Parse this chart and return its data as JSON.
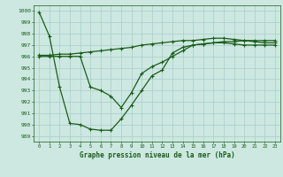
{
  "title": "Graphe pression niveau de la mer (hPa)",
  "bg_color": "#cce8e0",
  "grid_color": "#aacccc",
  "line_color": "#1a5c1a",
  "xlim": [
    -0.5,
    23.5
  ],
  "ylim": [
    988.5,
    1000.5
  ],
  "yticks": [
    989,
    990,
    991,
    992,
    993,
    994,
    995,
    996,
    997,
    998,
    999,
    1000
  ],
  "xticks": [
    0,
    1,
    2,
    3,
    4,
    5,
    6,
    7,
    8,
    9,
    10,
    11,
    12,
    13,
    14,
    15,
    16,
    17,
    18,
    19,
    20,
    21,
    22,
    23
  ],
  "line1_x": [
    0,
    1,
    2,
    3,
    4,
    5,
    6,
    7,
    8,
    9,
    10,
    11,
    12,
    13,
    14,
    15,
    16,
    17,
    18,
    19,
    20,
    21,
    22,
    23
  ],
  "line1_y": [
    999.9,
    997.8,
    993.3,
    990.1,
    990.0,
    989.6,
    989.5,
    989.5,
    990.5,
    991.7,
    993.0,
    994.3,
    994.8,
    996.3,
    996.8,
    997.0,
    997.1,
    997.2,
    997.2,
    997.1,
    997.0,
    997.0,
    997.0,
    997.0
  ],
  "line2_x": [
    0,
    1,
    2,
    3,
    4,
    5,
    6,
    7,
    8,
    9,
    10,
    11,
    12,
    13,
    14,
    15,
    16,
    17,
    18,
    19,
    20,
    21,
    22,
    23
  ],
  "line2_y": [
    996.1,
    996.1,
    996.2,
    996.2,
    996.3,
    996.4,
    996.5,
    996.6,
    996.7,
    996.8,
    997.0,
    997.1,
    997.2,
    997.3,
    997.4,
    997.4,
    997.5,
    997.6,
    997.6,
    997.5,
    997.4,
    997.3,
    997.2,
    997.2
  ],
  "line3_x": [
    0,
    1,
    2,
    3,
    4,
    5,
    6,
    7,
    8,
    9,
    10,
    11,
    12,
    13,
    14,
    15,
    16,
    17,
    18,
    19,
    20,
    21,
    22,
    23
  ],
  "line3_y": [
    996.0,
    996.0,
    996.0,
    996.0,
    996.0,
    993.3,
    993.0,
    992.5,
    991.5,
    992.8,
    994.5,
    995.1,
    995.5,
    996.0,
    996.5,
    997.0,
    997.1,
    997.2,
    997.3,
    997.3,
    997.4,
    997.4,
    997.4,
    997.4
  ],
  "line1_markers": [
    0,
    1,
    2,
    3,
    4,
    5,
    6,
    7,
    8,
    9,
    10,
    11,
    12,
    13,
    14,
    15,
    16,
    17,
    18,
    19,
    20,
    21,
    22,
    23
  ],
  "line2_markers": [
    0,
    1,
    2,
    3,
    4,
    5,
    6,
    7,
    8,
    9,
    10,
    11,
    12,
    13,
    14,
    15,
    16,
    17,
    18,
    19,
    20,
    21,
    22,
    23
  ],
  "line3_markers": [
    0,
    1,
    2,
    3,
    4,
    5,
    6,
    7,
    8,
    9,
    10,
    11,
    12,
    13,
    14,
    15,
    16,
    17,
    18,
    19,
    20,
    21,
    22,
    23
  ]
}
